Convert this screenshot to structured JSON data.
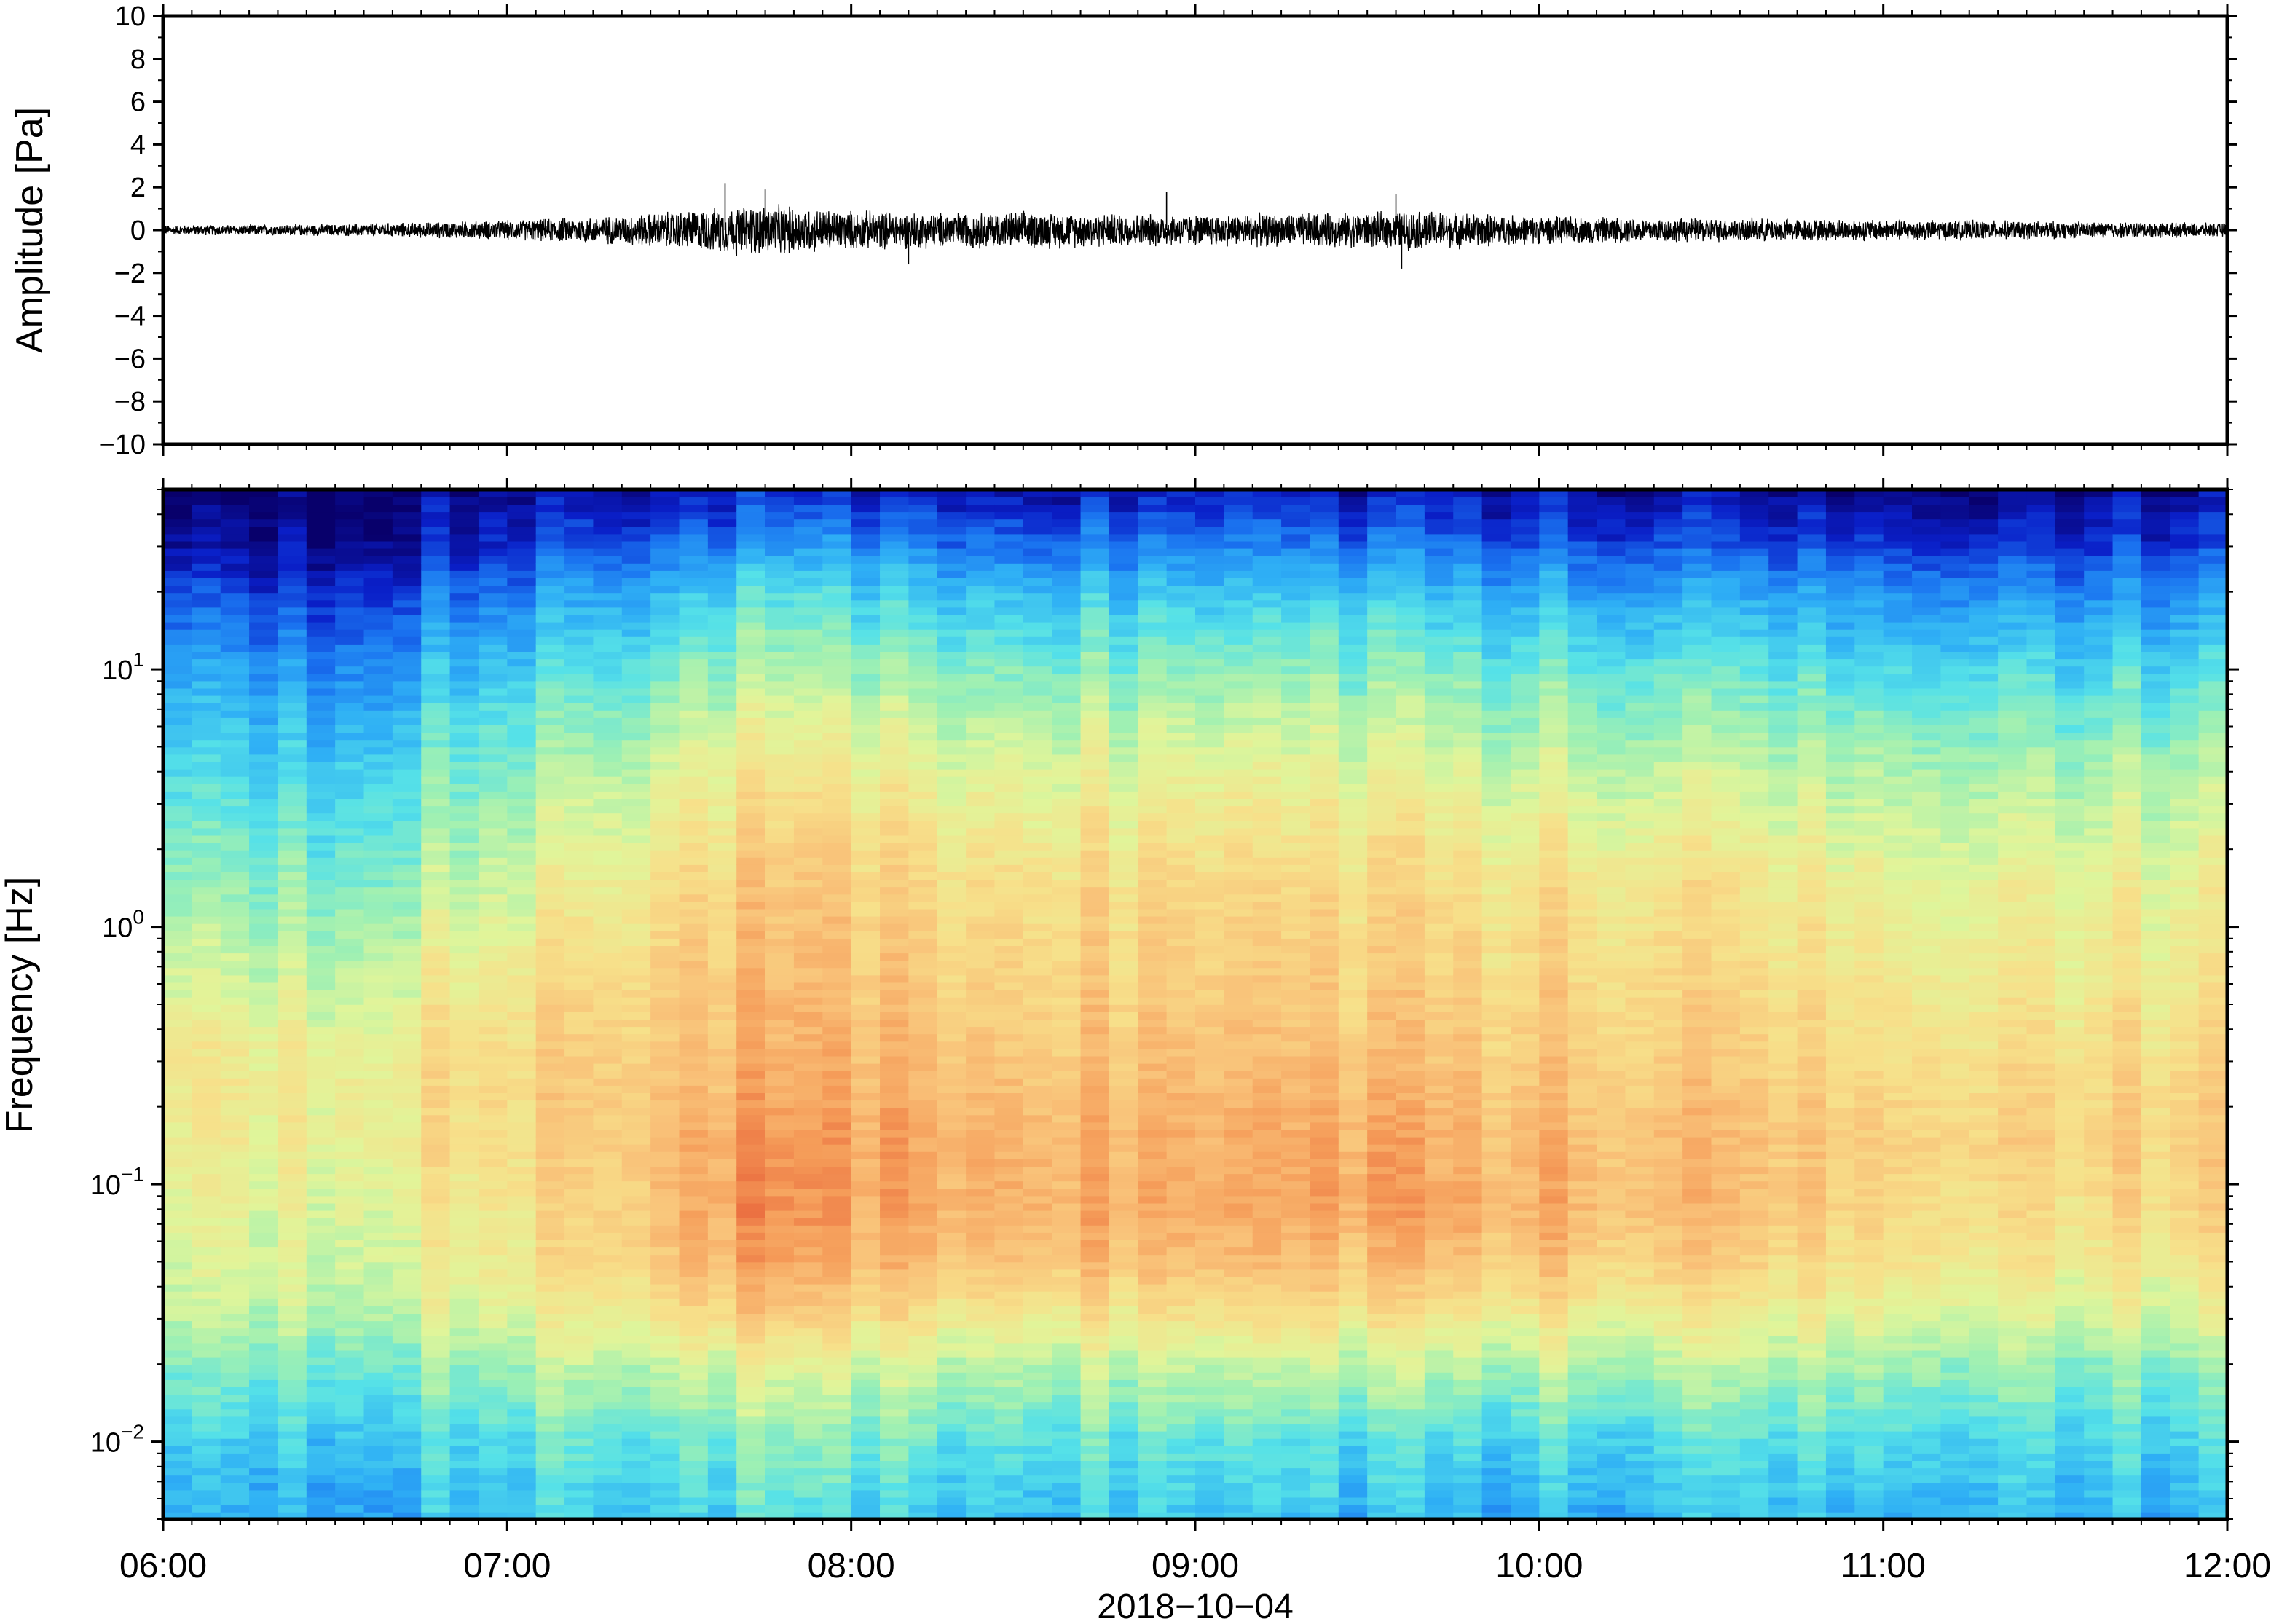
{
  "chart_data": [
    {
      "type": "line",
      "panel": "waveform",
      "title": "",
      "xlabel": "",
      "ylabel": "Amplitude [Pa]",
      "ylim": [
        -10,
        10
      ],
      "y_ticks": [
        10,
        8,
        6,
        4,
        2,
        0,
        -2,
        -4,
        -6,
        -8,
        -10
      ],
      "y_tick_labels": [
        "10",
        "8",
        "6",
        "4",
        "2",
        "0",
        "−2",
        "−4",
        "−6",
        "−8",
        "−10"
      ],
      "xlim": [
        "2018-10-04T06:00",
        "2018-10-04T12:00"
      ],
      "line_color": "#000000",
      "envelope": {
        "x": [
          "06:00",
          "06:30",
          "07:00",
          "07:20",
          "07:35",
          "07:45",
          "08:00",
          "08:15",
          "08:30",
          "08:45",
          "09:00",
          "09:15",
          "09:30",
          "09:40",
          "10:00",
          "10:30",
          "11:00",
          "11:30",
          "12:00"
        ],
        "amplitude": [
          0.25,
          0.3,
          0.5,
          0.75,
          1.1,
          1.3,
          1.0,
          0.9,
          0.95,
          0.85,
          0.8,
          0.85,
          0.9,
          1.0,
          0.7,
          0.6,
          0.55,
          0.45,
          0.35
        ]
      },
      "peaks": [
        {
          "x": "07:38",
          "y": 2.2
        },
        {
          "x": "07:45",
          "y": 1.9
        },
        {
          "x": "07:40",
          "y": -1.2
        },
        {
          "x": "08:10",
          "y": -1.6
        },
        {
          "x": "08:55",
          "y": 1.8
        },
        {
          "x": "09:35",
          "y": 1.7
        },
        {
          "x": "09:36",
          "y": -1.8
        }
      ]
    },
    {
      "type": "heatmap",
      "panel": "spectrogram",
      "title": "",
      "xlabel": "2018−10−04",
      "ylabel": "Frequency [Hz]",
      "y_scale": "log",
      "ylim": [
        0.005,
        50
      ],
      "y_major_ticks": [
        {
          "value": 10,
          "base": "10",
          "exp": "1"
        },
        {
          "value": 1,
          "base": "10",
          "exp": "0"
        },
        {
          "value": 0.1,
          "base": "10",
          "exp": "−1"
        },
        {
          "value": 0.01,
          "base": "10",
          "exp": "−2"
        }
      ],
      "x_ticks": [
        "06:00",
        "07:00",
        "08:00",
        "09:00",
        "10:00",
        "11:00",
        "12:00"
      ],
      "xlim": [
        "2018-10-04T06:00",
        "2018-10-04T12:00"
      ],
      "colormap": [
        "#08006b",
        "#0a1fc8",
        "#1a73f0",
        "#2fb0f5",
        "#55e1e8",
        "#9ef0b3",
        "#e0f59a",
        "#f7e08a",
        "#f9c279",
        "#f59b58",
        "#e8633a"
      ],
      "color_range": [
        0,
        1
      ],
      "rows_low_to_high_frequency": [
        0.005,
        0.01,
        0.02,
        0.03,
        0.05,
        0.08,
        0.15,
        0.3,
        0.6,
        1.5,
        4,
        10,
        20,
        30,
        50
      ],
      "columns_time": [
        "06:00",
        "06:30",
        "07:00",
        "07:15",
        "07:30",
        "07:45",
        "08:00",
        "08:30",
        "09:00",
        "09:30",
        "10:00",
        "10:30",
        "11:00",
        "11:30",
        "12:00"
      ],
      "intensity": [
        [
          0.32,
          0.3,
          0.34,
          0.35,
          0.36,
          0.4,
          0.36,
          0.35,
          0.34,
          0.32,
          0.3,
          0.33,
          0.34,
          0.33,
          0.3
        ],
        [
          0.38,
          0.36,
          0.4,
          0.42,
          0.44,
          0.48,
          0.44,
          0.43,
          0.42,
          0.4,
          0.38,
          0.4,
          0.42,
          0.4,
          0.36
        ],
        [
          0.5,
          0.47,
          0.52,
          0.55,
          0.58,
          0.62,
          0.58,
          0.56,
          0.56,
          0.55,
          0.54,
          0.54,
          0.55,
          0.5,
          0.48
        ],
        [
          0.58,
          0.55,
          0.6,
          0.64,
          0.7,
          0.76,
          0.7,
          0.68,
          0.68,
          0.68,
          0.66,
          0.64,
          0.64,
          0.6,
          0.58
        ],
        [
          0.62,
          0.6,
          0.66,
          0.72,
          0.8,
          0.88,
          0.82,
          0.8,
          0.8,
          0.8,
          0.78,
          0.74,
          0.72,
          0.68,
          0.66
        ],
        [
          0.64,
          0.62,
          0.68,
          0.74,
          0.84,
          0.92,
          0.86,
          0.86,
          0.84,
          0.88,
          0.84,
          0.8,
          0.76,
          0.72,
          0.74
        ],
        [
          0.68,
          0.66,
          0.72,
          0.76,
          0.84,
          0.9,
          0.86,
          0.85,
          0.84,
          0.86,
          0.82,
          0.8,
          0.78,
          0.76,
          0.74
        ],
        [
          0.7,
          0.66,
          0.72,
          0.76,
          0.8,
          0.84,
          0.82,
          0.8,
          0.8,
          0.8,
          0.78,
          0.76,
          0.74,
          0.72,
          0.72
        ],
        [
          0.62,
          0.58,
          0.68,
          0.72,
          0.78,
          0.82,
          0.78,
          0.76,
          0.76,
          0.76,
          0.74,
          0.72,
          0.7,
          0.68,
          0.66
        ],
        [
          0.52,
          0.48,
          0.58,
          0.64,
          0.72,
          0.78,
          0.74,
          0.72,
          0.72,
          0.72,
          0.7,
          0.68,
          0.66,
          0.64,
          0.62
        ],
        [
          0.42,
          0.38,
          0.48,
          0.54,
          0.62,
          0.68,
          0.64,
          0.62,
          0.62,
          0.62,
          0.58,
          0.56,
          0.56,
          0.54,
          0.52
        ],
        [
          0.32,
          0.26,
          0.36,
          0.4,
          0.48,
          0.54,
          0.5,
          0.48,
          0.48,
          0.48,
          0.44,
          0.42,
          0.42,
          0.4,
          0.38
        ],
        [
          0.18,
          0.14,
          0.22,
          0.28,
          0.34,
          0.4,
          0.36,
          0.34,
          0.34,
          0.34,
          0.3,
          0.28,
          0.28,
          0.26,
          0.24
        ],
        [
          0.08,
          0.06,
          0.12,
          0.16,
          0.22,
          0.26,
          0.24,
          0.22,
          0.22,
          0.22,
          0.18,
          0.16,
          0.16,
          0.14,
          0.12
        ],
        [
          0.02,
          0.02,
          0.04,
          0.06,
          0.08,
          0.1,
          0.09,
          0.08,
          0.08,
          0.08,
          0.06,
          0.05,
          0.05,
          0.04,
          0.04
        ]
      ]
    }
  ]
}
